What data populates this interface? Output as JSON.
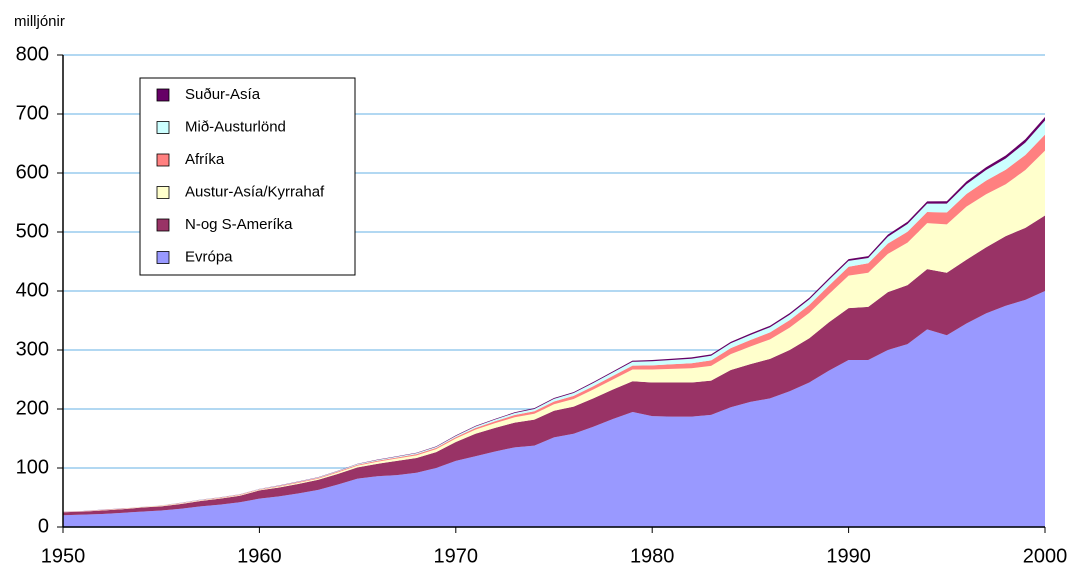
{
  "chart_data": {
    "type": "stacked-area",
    "y_label": "milljónir",
    "x": [
      1950,
      1951,
      1952,
      1953,
      1954,
      1955,
      1956,
      1957,
      1958,
      1959,
      1960,
      1961,
      1962,
      1963,
      1964,
      1965,
      1966,
      1967,
      1968,
      1969,
      1970,
      1971,
      1972,
      1973,
      1974,
      1975,
      1976,
      1977,
      1978,
      1979,
      1980,
      1981,
      1982,
      1983,
      1984,
      1985,
      1986,
      1987,
      1988,
      1989,
      1990,
      1991,
      1992,
      1993,
      1994,
      1995,
      1996,
      1997,
      1998,
      1999,
      2000
    ],
    "series": [
      {
        "name": "Evrópa",
        "color": "#9999ff",
        "values": [
          20,
          21,
          22,
          24,
          26,
          28,
          31,
          35,
          38,
          42,
          48,
          52,
          57,
          63,
          72,
          82,
          86,
          88,
          92,
          100,
          112,
          120,
          128,
          135,
          138,
          152,
          158,
          170,
          183,
          195,
          188,
          187,
          187,
          190,
          203,
          212,
          218,
          230,
          245,
          265,
          283,
          283,
          300,
          310,
          335,
          325,
          345,
          362,
          375,
          385,
          400
        ]
      },
      {
        "name": "N-og S-Ameríka",
        "color": "#993366",
        "values": [
          5,
          5,
          6,
          6,
          7,
          7,
          8,
          9,
          10,
          11,
          14,
          15,
          16,
          17,
          18,
          19,
          21,
          24,
          25,
          27,
          32,
          38,
          40,
          42,
          44,
          45,
          46,
          48,
          50,
          52,
          57,
          58,
          58,
          58,
          63,
          64,
          67,
          70,
          75,
          82,
          88,
          90,
          98,
          100,
          102,
          106,
          108,
          112,
          118,
          122,
          128
        ]
      },
      {
        "name": "Austur-Asía/Kyrrahaf",
        "color": "#ffffcc",
        "values": [
          0.2,
          0.3,
          0.4,
          0.5,
          0.6,
          0.7,
          0.8,
          0.9,
          1,
          1,
          1,
          1.5,
          2,
          2,
          2.5,
          3,
          3.5,
          4,
          4.5,
          5,
          6,
          7,
          8,
          9,
          10,
          11,
          13,
          15,
          17,
          20,
          22,
          23,
          24,
          25,
          27,
          30,
          33,
          38,
          43,
          48,
          55,
          58,
          65,
          72,
          78,
          82,
          90,
          90,
          88,
          98,
          110
        ]
      },
      {
        "name": "Afríka",
        "color": "#ff8080",
        "values": [
          0.5,
          0.5,
          0.6,
          0.6,
          0.6,
          0.7,
          0.7,
          0.7,
          0.8,
          0.8,
          0.8,
          1,
          1.2,
          1.3,
          1.5,
          1.6,
          1.8,
          1.9,
          2.1,
          2.2,
          2.4,
          2.9,
          3.3,
          3.8,
          4.2,
          4.7,
          5.2,
          5.6,
          6.1,
          6.5,
          7,
          7.8,
          8.6,
          9.4,
          10.2,
          11,
          11.8,
          12.6,
          13.4,
          14.2,
          15,
          16,
          17.5,
          18.5,
          19,
          20,
          21.5,
          23,
          24.5,
          25.5,
          27
        ]
      },
      {
        "name": "Mið-Austurlönd",
        "color": "#ccffff",
        "values": [
          0.2,
          0.2,
          0.3,
          0.3,
          0.3,
          0.4,
          0.4,
          0.5,
          0.5,
          0.6,
          0.6,
          0.7,
          0.8,
          0.9,
          1,
          1.1,
          1.3,
          1.4,
          1.6,
          1.7,
          1.9,
          2.4,
          2.9,
          3.4,
          3.9,
          4.5,
          5,
          5.5,
          6,
          6.5,
          7,
          7.3,
          7.6,
          7.9,
          8.2,
          8.5,
          8.8,
          9.1,
          9.4,
          9.7,
          10,
          9,
          11.5,
          13,
          14,
          15,
          16.5,
          18,
          19,
          21,
          24
        ]
      },
      {
        "name": "Suður-Asía",
        "color": "#660066",
        "values": [
          0.1,
          0.1,
          0.1,
          0.1,
          0.1,
          0.1,
          0.2,
          0.2,
          0.2,
          0.2,
          0.2,
          0.3,
          0.3,
          0.4,
          0.4,
          0.5,
          0.6,
          0.6,
          0.7,
          0.8,
          0.9,
          1,
          1.1,
          1.2,
          1.3,
          1.4,
          1.5,
          1.6,
          1.7,
          1.9,
          2,
          2.1,
          2.2,
          2.3,
          2.4,
          2.5,
          2.6,
          2.7,
          2.8,
          2.9,
          3,
          3.2,
          3.5,
          3.8,
          4,
          4.2,
          4.5,
          4.8,
          5.2,
          5.6,
          6
        ]
      }
    ],
    "xlim": [
      1950,
      2000
    ],
    "xticks": [
      1950,
      1960,
      1970,
      1980,
      1990,
      2000
    ],
    "ylim": [
      0,
      800
    ],
    "yticks": [
      0,
      100,
      200,
      300,
      400,
      500,
      600,
      700,
      800
    ],
    "grid": true,
    "grid_color": "#99ccee",
    "legend": "upper left"
  }
}
